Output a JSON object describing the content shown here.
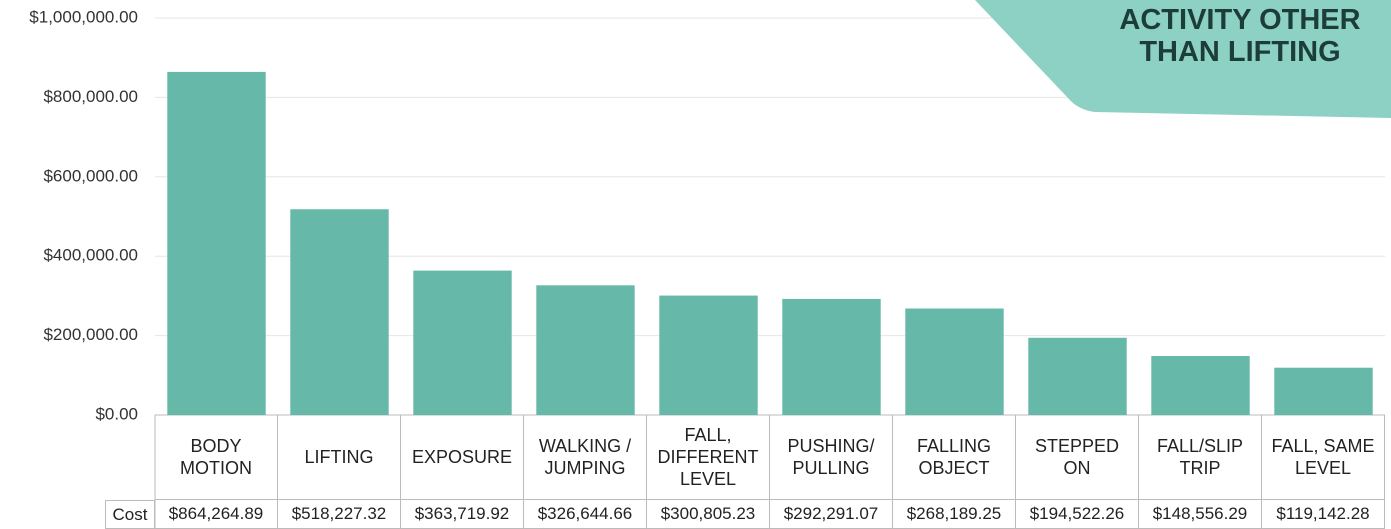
{
  "chart_data": {
    "type": "bar",
    "annotation": "ACTIVITY OTHER THAN LIFTING",
    "categories": [
      "BODY MOTION",
      "LIFTING",
      "EXPOSURE",
      "WALKING / JUMPING",
      "FALL, DIFFERENT LEVEL",
      "PUSHING/ PULLING",
      "FALLING OBJECT",
      "STEPPED ON",
      "FALL/SLIP TRIP",
      "FALL, SAME LEVEL"
    ],
    "values": [
      864264.89,
      518227.32,
      363719.92,
      326644.66,
      300805.23,
      292291.07,
      268189.25,
      194522.26,
      148556.29,
      119142.28
    ],
    "value_labels": [
      "$864,264.89",
      "$518,227.32",
      "$363,719.92",
      "$326,644.66",
      "$300,805.23",
      "$292,291.07",
      "$268,189.25",
      "$194,522.26",
      "$148,556.29",
      "$119,142.28"
    ],
    "table_row_label": "Cost",
    "color": "#66b8a9",
    "ylim": [
      0,
      1000000
    ],
    "yticks": [
      {
        "value": 0,
        "label": "$0.00"
      },
      {
        "value": 200000,
        "label": "$200,000.00"
      },
      {
        "value": 400000,
        "label": "$400,000.00"
      },
      {
        "value": 600000,
        "label": "$600,000.00"
      },
      {
        "value": 800000,
        "label": "$800,000.00"
      },
      {
        "value": 1000000,
        "label": "$1,000,000.00"
      }
    ],
    "grid": true
  }
}
